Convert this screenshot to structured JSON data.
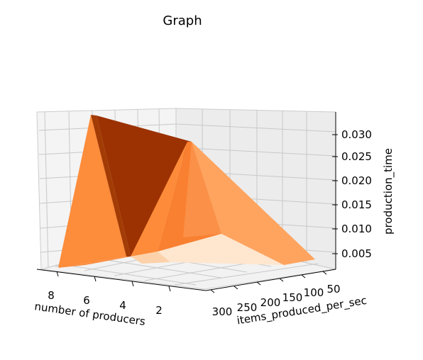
{
  "chart_data": {
    "type": "surface3d",
    "title": "Graph",
    "xlabel": "number of producers",
    "ylabel": "items_produced_per_sec",
    "zlabel": "production_time",
    "x_ticks": [
      "8",
      "6",
      "4",
      "2"
    ],
    "y_ticks": [
      "300",
      "250",
      "200",
      "150",
      "100",
      "50"
    ],
    "z_ticks": [
      "0.005",
      "0.010",
      "0.015",
      "0.020",
      "0.025",
      "0.030"
    ],
    "xlim": [
      1,
      9
    ],
    "ylim": [
      25,
      325
    ],
    "zlim": [
      0.001,
      0.034
    ],
    "grid": true,
    "colormap": "Oranges",
    "points": [
      {
        "producers": 9,
        "items_per_sec": 300,
        "production_time": 0.001
      },
      {
        "producers": 7.5,
        "items_per_sec": 300,
        "production_time": 0.033
      },
      {
        "producers": 6,
        "items_per_sec": 300,
        "production_time": 0.002
      },
      {
        "producers": 5,
        "items_per_sec": 200,
        "production_time": 0.003
      },
      {
        "producers": 3.5,
        "items_per_sec": 150,
        "production_time": 0.028
      },
      {
        "producers": 2.5,
        "items_per_sec": 75,
        "production_time": 0.006
      },
      {
        "producers": 1.5,
        "items_per_sec": 50,
        "production_time": 0.001
      },
      {
        "producers": 4,
        "items_per_sec": 100,
        "production_time": 0.002
      }
    ]
  }
}
